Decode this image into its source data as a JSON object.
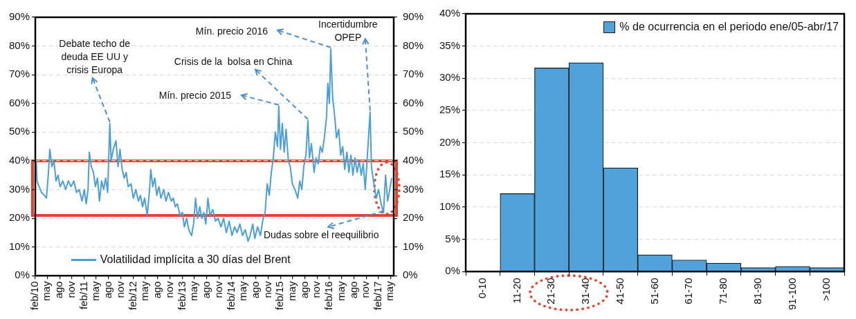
{
  "chart_data": [
    {
      "type": "line",
      "x": [
        "2010-02-08",
        "2010-02-14",
        "2010-03-01",
        "2010-03-20",
        "2010-04-10",
        "2010-04-25",
        "2010-05-10",
        "2010-05-20",
        "2010-06-05",
        "2010-06-20",
        "2010-07-05",
        "2010-07-20",
        "2010-08-05",
        "2010-08-25",
        "2010-09-15",
        "2010-10-05",
        "2010-10-25",
        "2010-11-15",
        "2010-12-05",
        "2010-12-25",
        "2011-01-15",
        "2011-02-01",
        "2011-02-15",
        "2011-03-01",
        "2011-03-10",
        "2011-03-25",
        "2011-04-10",
        "2011-04-25",
        "2011-05-10",
        "2011-05-25",
        "2011-06-10",
        "2011-06-25",
        "2011-07-10",
        "2011-07-25",
        "2011-08-10",
        "2011-08-20",
        "2011-09-05",
        "2011-09-25",
        "2011-10-10",
        "2011-10-25",
        "2011-11-10",
        "2011-11-25",
        "2011-12-10",
        "2011-12-25",
        "2012-01-15",
        "2012-02-01",
        "2012-02-20",
        "2012-03-10",
        "2012-03-25",
        "2012-04-10",
        "2012-04-25",
        "2012-05-15",
        "2012-06-01",
        "2012-06-10",
        "2012-06-25",
        "2012-07-10",
        "2012-07-25",
        "2012-08-10",
        "2012-08-25",
        "2012-09-15",
        "2012-10-01",
        "2012-10-20",
        "2012-11-10",
        "2012-11-25",
        "2012-12-10",
        "2012-12-25",
        "2013-01-15",
        "2013-02-01",
        "2013-02-15",
        "2013-03-05",
        "2013-03-20",
        "2013-04-10",
        "2013-04-25",
        "2013-05-10",
        "2013-05-25",
        "2013-06-10",
        "2013-06-25",
        "2013-07-10",
        "2013-07-25",
        "2013-08-10",
        "2013-08-25",
        "2013-09-15",
        "2013-10-05",
        "2013-10-25",
        "2013-11-15",
        "2013-12-05",
        "2013-12-25",
        "2014-01-15",
        "2014-02-05",
        "2014-02-25",
        "2014-03-15",
        "2014-04-05",
        "2014-04-25",
        "2014-05-15",
        "2014-06-05",
        "2014-06-20",
        "2014-07-10",
        "2014-07-25",
        "2014-08-15",
        "2014-09-05",
        "2014-09-25",
        "2014-10-10",
        "2014-10-25",
        "2014-11-10",
        "2014-11-25",
        "2014-12-10",
        "2014-12-25",
        "2015-01-10",
        "2015-01-20",
        "2015-02-01",
        "2015-02-15",
        "2015-03-01",
        "2015-03-15",
        "2015-04-01",
        "2015-04-15",
        "2015-05-01",
        "2015-05-20",
        "2015-06-10",
        "2015-06-25",
        "2015-07-10",
        "2015-07-25",
        "2015-08-10",
        "2015-08-25",
        "2015-09-05",
        "2015-09-20",
        "2015-10-10",
        "2015-10-25",
        "2015-11-10",
        "2015-11-25",
        "2015-12-10",
        "2015-12-25",
        "2016-01-10",
        "2016-01-20",
        "2016-02-01",
        "2016-02-11",
        "2016-02-25",
        "2016-03-10",
        "2016-03-25",
        "2016-04-10",
        "2016-04-25",
        "2016-05-10",
        "2016-05-25",
        "2016-06-10",
        "2016-06-25",
        "2016-07-10",
        "2016-07-25",
        "2016-08-10",
        "2016-08-25",
        "2016-09-10",
        "2016-09-25",
        "2016-10-10",
        "2016-10-25",
        "2016-11-10",
        "2016-11-30",
        "2016-12-10",
        "2016-12-25",
        "2017-01-15",
        "2017-02-01",
        "2017-02-20",
        "2017-03-10",
        "2017-03-25",
        "2017-04-10",
        "2017-04-25",
        "2017-05-10"
      ],
      "series": [
        {
          "name": "Volatilidad implícita a 30 días del Brent",
          "color": "#4a9fd8",
          "values": [
            40,
            33,
            31,
            29,
            28,
            27,
            36,
            44,
            38,
            40,
            33,
            35,
            31,
            33,
            30,
            33,
            31,
            33,
            29,
            30,
            26,
            30,
            25,
            30,
            43,
            38,
            36,
            31,
            34,
            26,
            33,
            30,
            34,
            29,
            53,
            40,
            44,
            47,
            38,
            44,
            37,
            34,
            36,
            31,
            32,
            27,
            30,
            26,
            28,
            24,
            27,
            21,
            30,
            37,
            31,
            34,
            28,
            31,
            27,
            30,
            26,
            29,
            26,
            27,
            24,
            25,
            21,
            22,
            17,
            20,
            16,
            14,
            18,
            27,
            20,
            24,
            20,
            22,
            18,
            27,
            21,
            23,
            19,
            20,
            17,
            20,
            15,
            19,
            14,
            17,
            15,
            18,
            14,
            16,
            12,
            14,
            18,
            13,
            17,
            14,
            20,
            22,
            32,
            28,
            36,
            41,
            50,
            45,
            59,
            44,
            53,
            43,
            51,
            40,
            38,
            32,
            30,
            27,
            33,
            30,
            38,
            42,
            54,
            41,
            46,
            36,
            41,
            39,
            45,
            43,
            48,
            55,
            67,
            60,
            79,
            62,
            56,
            48,
            51,
            42,
            45,
            37,
            43,
            36,
            42,
            35,
            41,
            36,
            40,
            35,
            39,
            30,
            42,
            57,
            38,
            33,
            27,
            30,
            25,
            22,
            35,
            26,
            30,
            34
          ]
        }
      ],
      "xlim": [
        "2010-02-01",
        "2017-05-25"
      ],
      "xticks": [
        {
          "value": "2010-02-01",
          "label": "feb/10"
        },
        {
          "value": "2010-05-01",
          "label": "may"
        },
        {
          "value": "2010-08-01",
          "label": "ago"
        },
        {
          "value": "2010-11-01",
          "label": "nov"
        },
        {
          "value": "2011-02-01",
          "label": "feb/11"
        },
        {
          "value": "2011-05-01",
          "label": "may"
        },
        {
          "value": "2011-08-01",
          "label": "ago"
        },
        {
          "value": "2011-11-01",
          "label": "nov"
        },
        {
          "value": "2012-02-01",
          "label": "feb/12"
        },
        {
          "value": "2012-05-01",
          "label": "may"
        },
        {
          "value": "2012-08-01",
          "label": "ago"
        },
        {
          "value": "2012-11-01",
          "label": "nov"
        },
        {
          "value": "2013-02-01",
          "label": "feb/13"
        },
        {
          "value": "2013-05-01",
          "label": "may"
        },
        {
          "value": "2013-08-01",
          "label": "ago"
        },
        {
          "value": "2013-11-01",
          "label": "nov"
        },
        {
          "value": "2014-02-01",
          "label": "feb/14"
        },
        {
          "value": "2014-05-01",
          "label": "may"
        },
        {
          "value": "2014-08-01",
          "label": "ago"
        },
        {
          "value": "2014-11-01",
          "label": "nov"
        },
        {
          "value": "2015-02-01",
          "label": "feb/15"
        },
        {
          "value": "2015-05-01",
          "label": "may"
        },
        {
          "value": "2015-08-01",
          "label": "ago"
        },
        {
          "value": "2015-11-01",
          "label": "nov"
        },
        {
          "value": "2016-02-01",
          "label": "feb/16"
        },
        {
          "value": "2016-05-01",
          "label": "may"
        },
        {
          "value": "2016-08-01",
          "label": "ago"
        },
        {
          "value": "2016-11-01",
          "label": "nov"
        },
        {
          "value": "2017-02-01",
          "label": "feb/17"
        },
        {
          "value": "2017-05-01",
          "label": "may"
        }
      ],
      "ylim": [
        0,
        90
      ],
      "yticks": [
        {
          "value": 0,
          "label": "0%"
        },
        {
          "value": 10,
          "label": "10%"
        },
        {
          "value": 20,
          "label": "20%"
        },
        {
          "value": 30,
          "label": "30%"
        },
        {
          "value": 40,
          "label": "40%"
        },
        {
          "value": 50,
          "label": "50%"
        },
        {
          "value": 60,
          "label": "60%"
        },
        {
          "value": 70,
          "label": "70%"
        },
        {
          "value": 80,
          "label": "80%"
        },
        {
          "value": 90,
          "label": "90%"
        }
      ],
      "y2lim": [
        0,
        90
      ],
      "y2ticks": [
        {
          "value": 0,
          "label": "0%"
        },
        {
          "value": 10,
          "label": "10%"
        },
        {
          "value": 20,
          "label": "20%"
        },
        {
          "value": 30,
          "label": "30%"
        },
        {
          "value": 40,
          "label": "40%"
        },
        {
          "value": 50,
          "label": "50%"
        },
        {
          "value": 60,
          "label": "60%"
        },
        {
          "value": 70,
          "label": "70%"
        },
        {
          "value": 80,
          "label": "80%"
        },
        {
          "value": 90,
          "label": "90%"
        }
      ],
      "grid": "y",
      "legend": "bottom",
      "annotations": [
        {
          "text": "Debate techo de\ndeuda EE UU y\ncrisis Europa",
          "x": "2011-08-10",
          "y": 53
        },
        {
          "text": "Mín. precio 2015",
          "x": "2015-01-20",
          "y": 59
        },
        {
          "text": "Crisis de la  bolsa en China",
          "x": "2015-08-25",
          "y": 54
        },
        {
          "text": "Mín. precio 2016",
          "x": "2016-02-11",
          "y": 79
        },
        {
          "text": "Incertidumbre\nOPEP",
          "x": "2016-11-30",
          "y": 57
        },
        {
          "text": "Dudas sobre el reequilibrio",
          "x": "2017-03-10",
          "y": 22
        }
      ]
    },
    {
      "type": "bar",
      "categories": [
        "0-10",
        "11-20",
        "21-30",
        "31-40",
        "41-50",
        "51-60",
        "61-70",
        "71-80",
        "81-90",
        "91-100",
        ">100"
      ],
      "series": [
        {
          "name": "% de ocurrencia en el periodo ene/05-abr/17",
          "color": "#4fa3da",
          "values": [
            0,
            12.1,
            31.6,
            32.4,
            16.1,
            2.6,
            1.8,
            1.3,
            0.6,
            0.8,
            0.6
          ]
        }
      ],
      "ylim": [
        0,
        40
      ],
      "yticks": [
        {
          "value": 0,
          "label": "0%"
        },
        {
          "value": 5,
          "label": "5%"
        },
        {
          "value": 10,
          "label": "10%"
        },
        {
          "value": 15,
          "label": "15%"
        },
        {
          "value": 20,
          "label": "20%"
        },
        {
          "value": 25,
          "label": "25%"
        },
        {
          "value": 30,
          "label": "30%"
        },
        {
          "value": 35,
          "label": "35%"
        },
        {
          "value": 40,
          "label": "40%"
        }
      ],
      "grid": "y",
      "legend": "top right"
    }
  ]
}
